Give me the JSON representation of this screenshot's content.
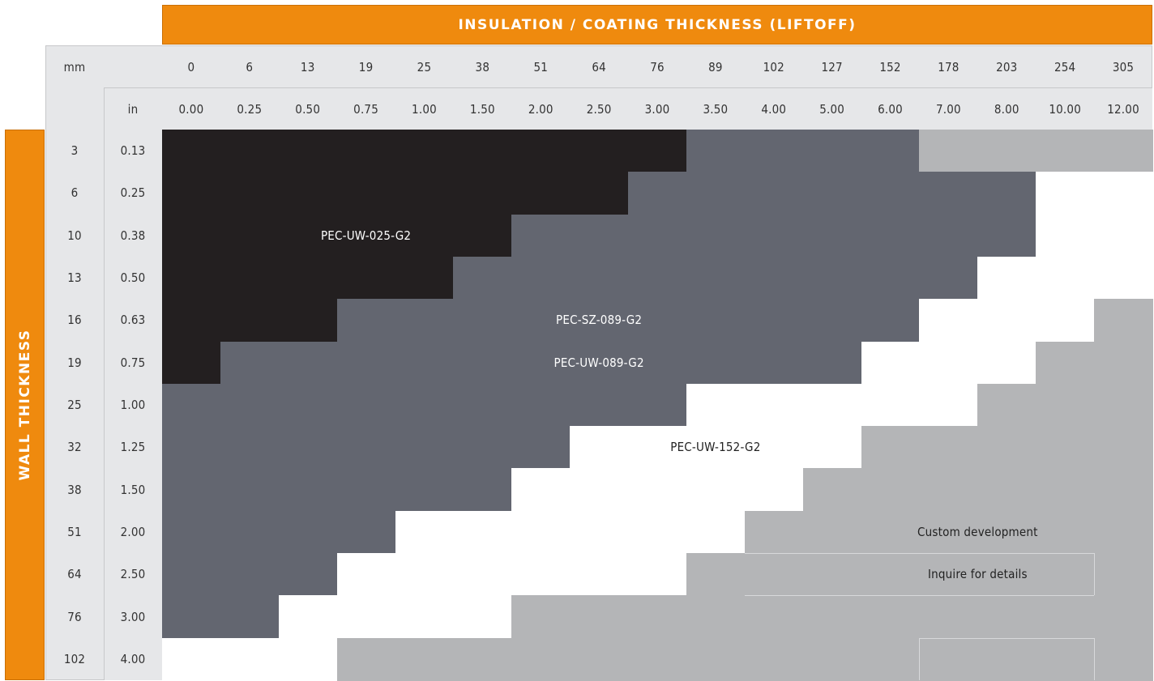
{
  "chart_data": {
    "type": "heatmap",
    "title": "INSULATION / COATING THICKNESS (LIFTOFF)",
    "ylabel": "WALL THICKNESS",
    "x_unit_mm": "mm",
    "x_unit_in": "in",
    "x_mm": [
      "0",
      "6",
      "13",
      "19",
      "25",
      "38",
      "51",
      "64",
      "76",
      "89",
      "102",
      "127",
      "152",
      "178",
      "203",
      "254",
      "305"
    ],
    "x_in": [
      "0.00",
      "0.25",
      "0.50",
      "0.75",
      "1.00",
      "1.50",
      "2.00",
      "2.50",
      "3.00",
      "3.50",
      "4.00",
      "5.00",
      "6.00",
      "7.00",
      "8.00",
      "10.00",
      "12.00"
    ],
    "y_mm": [
      "3",
      "6",
      "10",
      "13",
      "16",
      "19",
      "25",
      "32",
      "38",
      "51",
      "64",
      "76",
      "102"
    ],
    "y_in": [
      "0.13",
      "0.25",
      "0.38",
      "0.50",
      "0.63",
      "0.75",
      "1.00",
      "1.25",
      "1.50",
      "2.00",
      "2.50",
      "3.00",
      "4.00"
    ],
    "categories": {
      "0": {
        "name": "PEC-UW-025-G2",
        "color": "#231f20",
        "text_color": "#ffffff"
      },
      "1": {
        "name": "PEC-SZ-089-G2 / PEC-UW-089-G2",
        "color": "#636670",
        "text_color": "#ffffff"
      },
      "2": {
        "name": "PEC-UW-152-G2",
        "color": "#ffffff",
        "text_color": "#222222"
      },
      "3": {
        "name": "Custom development / Inquire for details",
        "color": "#b4b5b7",
        "text_color": "#222222"
      }
    },
    "cells": [
      [
        0,
        0,
        0,
        0,
        0,
        0,
        0,
        0,
        0,
        1,
        1,
        1,
        1,
        3,
        3,
        3,
        3
      ],
      [
        0,
        0,
        0,
        0,
        0,
        0,
        0,
        0,
        1,
        1,
        1,
        1,
        1,
        1,
        1,
        2,
        2
      ],
      [
        0,
        0,
        0,
        0,
        0,
        0,
        1,
        1,
        1,
        1,
        1,
        1,
        1,
        1,
        1,
        2,
        2
      ],
      [
        0,
        0,
        0,
        0,
        0,
        1,
        1,
        1,
        1,
        1,
        1,
        1,
        1,
        1,
        2,
        2,
        2
      ],
      [
        0,
        0,
        0,
        1,
        1,
        1,
        1,
        1,
        1,
        1,
        1,
        1,
        1,
        2,
        2,
        2,
        3
      ],
      [
        0,
        1,
        1,
        1,
        1,
        1,
        1,
        1,
        1,
        1,
        1,
        1,
        2,
        2,
        2,
        3,
        3
      ],
      [
        1,
        1,
        1,
        1,
        1,
        1,
        1,
        1,
        1,
        2,
        2,
        2,
        2,
        2,
        3,
        3,
        3
      ],
      [
        1,
        1,
        1,
        1,
        1,
        1,
        1,
        2,
        2,
        2,
        2,
        2,
        3,
        3,
        3,
        3,
        3
      ],
      [
        1,
        1,
        1,
        1,
        1,
        1,
        2,
        2,
        2,
        2,
        2,
        3,
        3,
        3,
        3,
        3,
        3
      ],
      [
        1,
        1,
        1,
        1,
        2,
        2,
        2,
        2,
        2,
        2,
        3,
        3,
        3,
        3,
        3,
        3,
        3
      ],
      [
        1,
        1,
        1,
        2,
        2,
        2,
        2,
        2,
        2,
        3,
        3,
        3,
        3,
        3,
        3,
        3,
        3
      ],
      [
        1,
        1,
        2,
        2,
        2,
        2,
        3,
        3,
        3,
        3,
        3,
        3,
        3,
        3,
        3,
        3,
        3
      ],
      [
        2,
        2,
        2,
        3,
        3,
        3,
        3,
        3,
        3,
        3,
        3,
        3,
        3,
        3,
        3,
        3,
        3
      ]
    ],
    "region_labels": [
      {
        "text": "PEC-UW-025-G2",
        "row": 2,
        "col": 3,
        "cat": 0
      },
      {
        "text": "PEC-SZ-089-G2",
        "row": 4,
        "col": 7,
        "cat": 1
      },
      {
        "text": "PEC-UW-089-G2",
        "row": 5,
        "col": 7,
        "cat": 1
      },
      {
        "text": "PEC-UW-152-G2",
        "row": 7,
        "col": 9,
        "cat": 2
      },
      {
        "text": "Custom development",
        "row": 9,
        "col": 13.5,
        "cat": 3
      },
      {
        "text": "Inquire for details",
        "row": 10,
        "col": 13.5,
        "cat": 3
      }
    ]
  }
}
